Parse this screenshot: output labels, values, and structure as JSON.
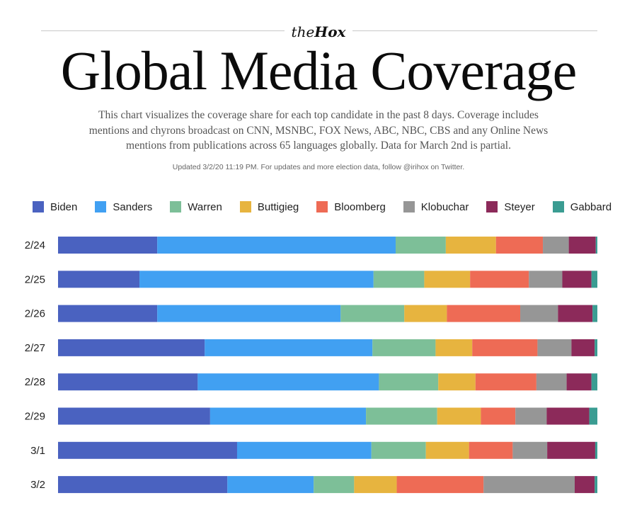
{
  "brand": {
    "the": "the",
    "hox": "Hox"
  },
  "title": "Global Media Coverage",
  "description": "This chart visualizes the coverage share for each top candidate in the past 8 days. Coverage includes mentions and chyrons broadcast on CNN, MSNBC, FOX News, ABC, NBC, CBS and any Online News mentions from publications across 65 languages globally. Data for March 2nd is partial.",
  "updated": "Updated 3/2/20 11:19 PM. For updates and more election data, follow @irihox on Twitter.",
  "chart_data": {
    "type": "bar",
    "orientation": "horizontal",
    "stacked": true,
    "normalized": true,
    "title": "Global Media Coverage",
    "categories": [
      "2/24",
      "2/25",
      "2/26",
      "2/27",
      "2/28",
      "2/29",
      "3/1",
      "3/2"
    ],
    "series": [
      {
        "name": "Biden",
        "color": "#4a62c0",
        "values": [
          18.4,
          15.1,
          18.4,
          27.2,
          25.9,
          28.2,
          33.2,
          31.4
        ]
      },
      {
        "name": "Sanders",
        "color": "#41a0f2",
        "values": [
          44.2,
          43.4,
          34.0,
          31.1,
          33.6,
          28.9,
          24.9,
          16.0
        ]
      },
      {
        "name": "Warren",
        "color": "#7dbf98",
        "values": [
          9.3,
          9.4,
          11.8,
          11.7,
          11.0,
          13.2,
          10.1,
          7.5
        ]
      },
      {
        "name": "Buttigieg",
        "color": "#e7b43f",
        "values": [
          9.3,
          8.5,
          7.9,
          6.8,
          6.9,
          8.1,
          8.0,
          7.9
        ]
      },
      {
        "name": "Bloomberg",
        "color": "#ee6b55",
        "values": [
          8.7,
          10.9,
          13.6,
          12.1,
          11.3,
          6.4,
          8.1,
          16.1
        ]
      },
      {
        "name": "Klobuchar",
        "color": "#969696",
        "values": [
          4.8,
          6.2,
          7.0,
          6.3,
          5.6,
          5.8,
          6.4,
          16.9
        ]
      },
      {
        "name": "Steyer",
        "color": "#8c2a5a",
        "values": [
          5.0,
          5.4,
          6.4,
          4.3,
          4.6,
          7.9,
          8.9,
          3.7
        ]
      },
      {
        "name": "Gabbard",
        "color": "#3a9c92",
        "values": [
          0.3,
          1.1,
          0.9,
          0.5,
          1.1,
          1.5,
          0.4,
          0.5
        ]
      }
    ],
    "xlim": [
      0,
      100
    ],
    "grid": false,
    "legend": "top"
  }
}
